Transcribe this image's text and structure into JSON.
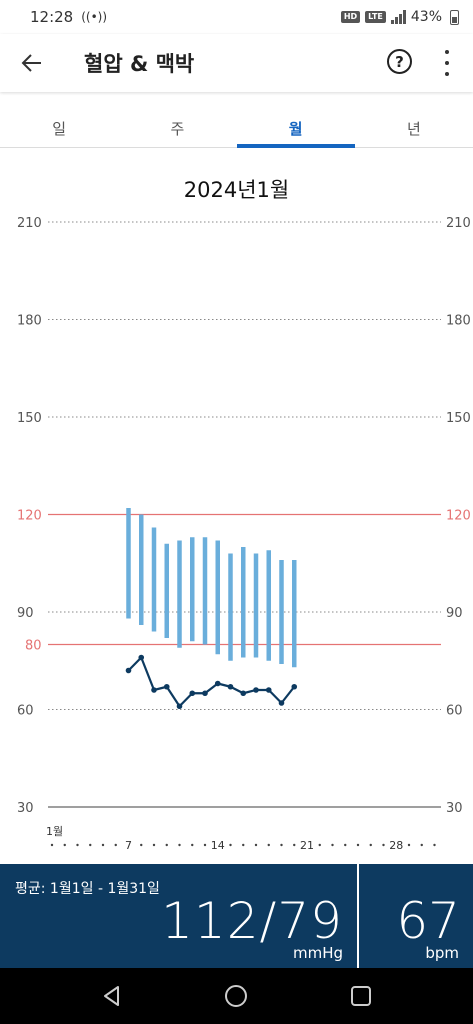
{
  "status": {
    "time": "12:28",
    "notif": "((•))",
    "hd": "HD",
    "lte": "LTE",
    "battery": "43%"
  },
  "app_bar": {
    "title": "혈압 & 맥박"
  },
  "tabs": [
    {
      "label": "일",
      "active": false
    },
    {
      "label": "주",
      "active": false
    },
    {
      "label": "월",
      "active": true
    },
    {
      "label": "년",
      "active": false
    }
  ],
  "chart_data": {
    "type": "range-bar+line",
    "title": "2024년1월",
    "ylim": [
      30,
      210
    ],
    "yticks": [
      30,
      60,
      90,
      120,
      150,
      180,
      210
    ],
    "thresholds": [
      {
        "value": 120,
        "label": "120",
        "color": "#e57373"
      },
      {
        "value": 80,
        "label": "80",
        "color": "#e57373"
      }
    ],
    "x_days": 31,
    "x_ticks": [
      {
        "day": 1,
        "label": "1월"
      },
      {
        "day": 7,
        "label": "7"
      },
      {
        "day": 14,
        "label": "14"
      },
      {
        "day": 21,
        "label": "21"
      },
      {
        "day": 28,
        "label": "28"
      }
    ],
    "bp_series": [
      {
        "day": 7,
        "sys": 122,
        "dia": 88
      },
      {
        "day": 8,
        "sys": 120,
        "dia": 86
      },
      {
        "day": 9,
        "sys": 116,
        "dia": 84
      },
      {
        "day": 10,
        "sys": 111,
        "dia": 82
      },
      {
        "day": 11,
        "sys": 112,
        "dia": 79
      },
      {
        "day": 12,
        "sys": 113,
        "dia": 81
      },
      {
        "day": 13,
        "sys": 113,
        "dia": 80
      },
      {
        "day": 14,
        "sys": 112,
        "dia": 77
      },
      {
        "day": 15,
        "sys": 108,
        "dia": 75
      },
      {
        "day": 16,
        "sys": 110,
        "dia": 76
      },
      {
        "day": 17,
        "sys": 108,
        "dia": 76
      },
      {
        "day": 18,
        "sys": 109,
        "dia": 75
      },
      {
        "day": 19,
        "sys": 106,
        "dia": 74
      },
      {
        "day": 20,
        "sys": 106,
        "dia": 73
      }
    ],
    "pulse_series": [
      {
        "day": 7,
        "value": 72
      },
      {
        "day": 8,
        "value": 76
      },
      {
        "day": 9,
        "value": 66
      },
      {
        "day": 10,
        "value": 67
      },
      {
        "day": 11,
        "value": 61
      },
      {
        "day": 12,
        "value": 65
      },
      {
        "day": 13,
        "value": 65
      },
      {
        "day": 14,
        "value": 68
      },
      {
        "day": 15,
        "value": 67
      },
      {
        "day": 16,
        "value": 65
      },
      {
        "day": 17,
        "value": 66
      },
      {
        "day": 18,
        "value": 66
      },
      {
        "day": 19,
        "value": 62
      },
      {
        "day": 20,
        "value": 67
      }
    ],
    "colors": {
      "bar": "#6aaedb",
      "line": "#0d3a60",
      "grid": "#888888",
      "threshold": "#e57373"
    }
  },
  "summary": {
    "range_label": "평균: 1월1일 - 1월31일",
    "bp_value": "112/79",
    "bp_unit": "mmHg",
    "pulse_value": "67",
    "pulse_unit": "bpm"
  }
}
